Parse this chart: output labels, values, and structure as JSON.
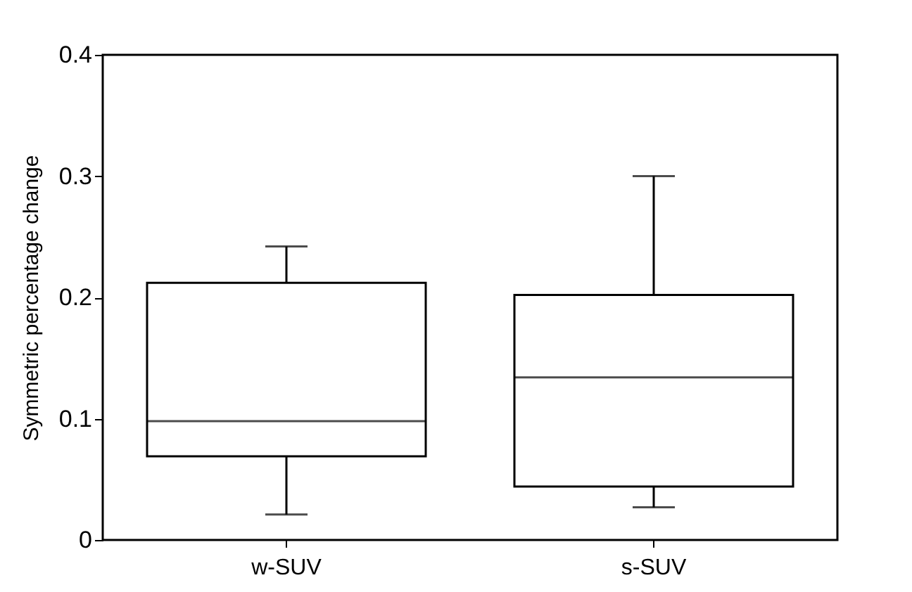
{
  "chart_data": {
    "type": "box",
    "ylabel": "Symmetric percentage change",
    "categories": [
      "w-SUV",
      "s-SUV"
    ],
    "boxes": [
      {
        "low": 0.021,
        "q1": 0.069,
        "median": 0.098,
        "q3": 0.212,
        "high": 0.242
      },
      {
        "low": 0.027,
        "q1": 0.044,
        "median": 0.134,
        "q3": 0.202,
        "high": 0.3
      }
    ],
    "ylim": [
      0,
      0.4
    ],
    "yticks": [
      0,
      0.1,
      0.2,
      0.3,
      0.4
    ],
    "grid": false
  }
}
